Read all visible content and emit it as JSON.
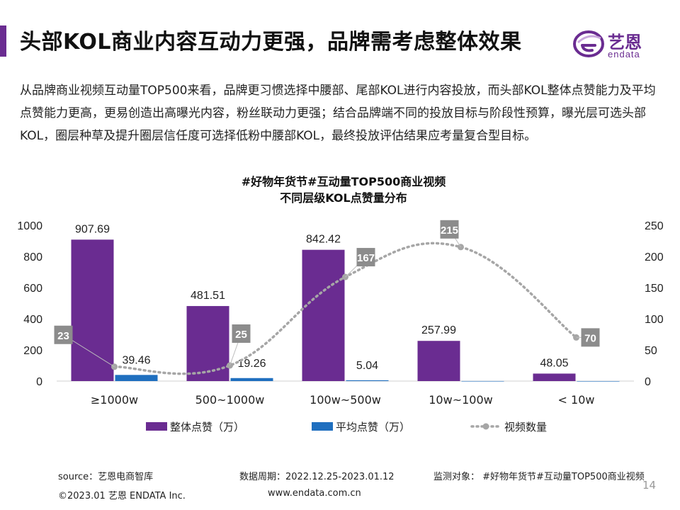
{
  "page": {
    "title": "头部KOL商业内容互动力更强，品牌需考虑整体效果",
    "intro": "从品牌商业视频互动量TOP500来看，品牌更习惯选择中腰部、尾部KOL进行内容投放，而头部KOL整体点赞能力及平均点赞能力更高，更易创造出高曝光内容，粉丝联动力更强；结合品牌端不同的投放目标与阶段性预算，曝光层可选头部KOL，圈层种草及提升圈层信任度可选择低粉中腰部KOL，最终投放评估结果应考量复合型目标。",
    "page_number": "14"
  },
  "logo": {
    "name_cn": "艺恩",
    "name_en": "endata",
    "icon": "endata-logo-icon"
  },
  "footer": {
    "source": "source：艺恩电商智库",
    "period": "数据周期：2022.12.25-2023.01.12",
    "subject": "监测对象：  #好物年货节#互动量TOP500商业视频",
    "copyright": "©2023.01 艺恩 ENDATA Inc.",
    "website": "www.endata.com.cn"
  },
  "colors": {
    "accent": "#6a2c91",
    "total_likes": "#6a2c91",
    "avg_likes": "#1f6fbf",
    "video_count": "#a6a6a6",
    "label_box": "#8c8c8c"
  },
  "chart_data": {
    "type": "bar",
    "title": "#好物年货节#互动量TOP500商业视频",
    "subtitle": "不同层级KOL点赞量分布",
    "categories": [
      "≥1000w",
      "500~1000w",
      "100w~500w",
      "10w~100w",
      "< 10w"
    ],
    "y_left": {
      "lim": [
        0,
        1000
      ],
      "ticks": [
        0,
        200,
        400,
        600,
        800,
        1000
      ]
    },
    "y_right": {
      "lim": [
        0,
        250
      ],
      "ticks": [
        0,
        50,
        100,
        150,
        200,
        250
      ]
    },
    "grid": false,
    "legend_position": "bottom",
    "series": [
      {
        "name": "整体点赞（万）",
        "type": "bar",
        "axis": "left",
        "values": [
          907.69,
          481.51,
          842.42,
          257.99,
          48.05
        ],
        "labels": [
          "907.69",
          "481.51",
          "842.42",
          "257.99",
          "48.05"
        ]
      },
      {
        "name": "平均点赞（万）",
        "type": "bar",
        "axis": "left",
        "values": [
          39.46,
          19.26,
          5.04,
          0.26,
          0.01
        ],
        "labels": [
          "39.46",
          "19.26",
          "5.04",
          "",
          ""
        ]
      },
      {
        "name": "视频数量",
        "type": "line",
        "axis": "right",
        "values": [
          23,
          25,
          167,
          215,
          70
        ],
        "labels": [
          "23",
          "25",
          "167",
          "215",
          "70"
        ]
      }
    ]
  }
}
